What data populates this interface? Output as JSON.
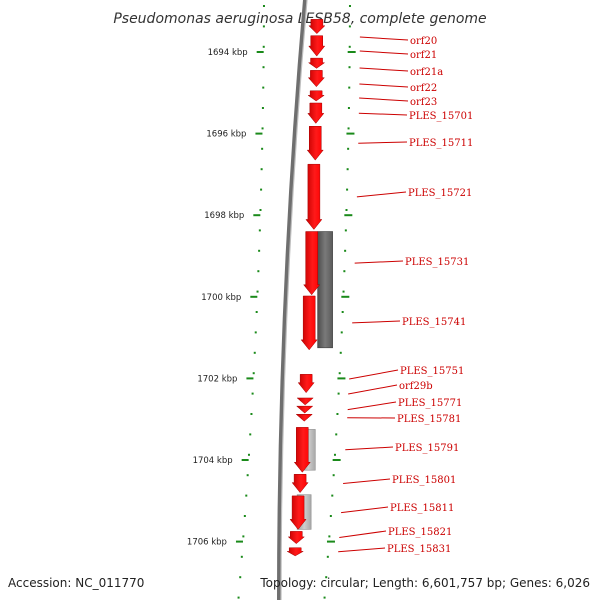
{
  "title": "Pseudomonas aeruginosa LESB58, complete genome",
  "footer": {
    "accession": "Accession: NC_011770",
    "summary": "Topology: circular; Length: 6,601,757 bp; Genes: 6,026"
  },
  "scale": {
    "ticks": [
      {
        "kbp": 1694,
        "label": "1694 kbp"
      },
      {
        "kbp": 1696,
        "label": "1696 kbp"
      },
      {
        "kbp": 1698,
        "label": "1698 kbp"
      },
      {
        "kbp": 1700,
        "label": "1700 kbp"
      },
      {
        "kbp": 1702,
        "label": "1702 kbp"
      },
      {
        "kbp": 1704,
        "label": "1704 kbp"
      },
      {
        "kbp": 1706,
        "label": "1706 kbp"
      }
    ]
  },
  "genes": [
    {
      "name": "orf20",
      "start_kbp": 1693.2,
      "end_kbp": 1693.55
    },
    {
      "name": "orf21",
      "start_kbp": 1693.6,
      "end_kbp": 1694.1
    },
    {
      "name": "orf21a",
      "start_kbp": 1694.15,
      "end_kbp": 1694.4
    },
    {
      "name": "orf22",
      "start_kbp": 1694.45,
      "end_kbp": 1694.85
    },
    {
      "name": "orf23",
      "start_kbp": 1694.95,
      "end_kbp": 1695.2
    },
    {
      "name": "PLES_15701",
      "start_kbp": 1695.25,
      "end_kbp": 1695.75
    },
    {
      "name": "PLES_15711",
      "start_kbp": 1695.82,
      "end_kbp": 1696.65
    },
    {
      "name": "PLES_15721",
      "start_kbp": 1696.75,
      "end_kbp": 1698.35
    },
    {
      "name": "PLES_15731",
      "start_kbp": 1698.4,
      "end_kbp": 1699.95
    },
    {
      "name": "PLES_15741",
      "start_kbp": 1699.98,
      "end_kbp": 1701.3
    },
    {
      "name": "PLES_15751",
      "start_kbp": 1701.9,
      "end_kbp": 1702.35
    },
    {
      "name": "orf29b",
      "start_kbp": 1702.48,
      "end_kbp": 1702.65
    },
    {
      "name": "PLES_15771",
      "start_kbp": 1702.68,
      "end_kbp": 1702.85
    },
    {
      "name": "PLES_15781",
      "start_kbp": 1702.88,
      "end_kbp": 1703.05
    },
    {
      "name": "PLES_15791",
      "start_kbp": 1703.2,
      "end_kbp": 1704.3
    },
    {
      "name": "PLES_15801",
      "start_kbp": 1704.35,
      "end_kbp": 1704.8
    },
    {
      "name": "PLES_15811",
      "start_kbp": 1704.88,
      "end_kbp": 1705.7
    },
    {
      "name": "PLES_15821",
      "start_kbp": 1705.75,
      "end_kbp": 1706.05
    },
    {
      "name": "PLES_15831",
      "start_kbp": 1706.15,
      "end_kbp": 1706.35
    }
  ],
  "gray_features": [
    {
      "start_kbp": 1698.4,
      "end_kbp": 1701.25,
      "shade": "#666666"
    },
    {
      "start_kbp": 1703.25,
      "end_kbp": 1704.25,
      "shade": "#aaaaaa"
    },
    {
      "start_kbp": 1704.85,
      "end_kbp": 1705.7,
      "shade": "#aaaaaa"
    }
  ],
  "colors": {
    "gene": "#ff0000",
    "gene_dark": "#b80000",
    "backbone": "#777777",
    "tick": "#1a8a1a",
    "label": "#cc0000"
  }
}
